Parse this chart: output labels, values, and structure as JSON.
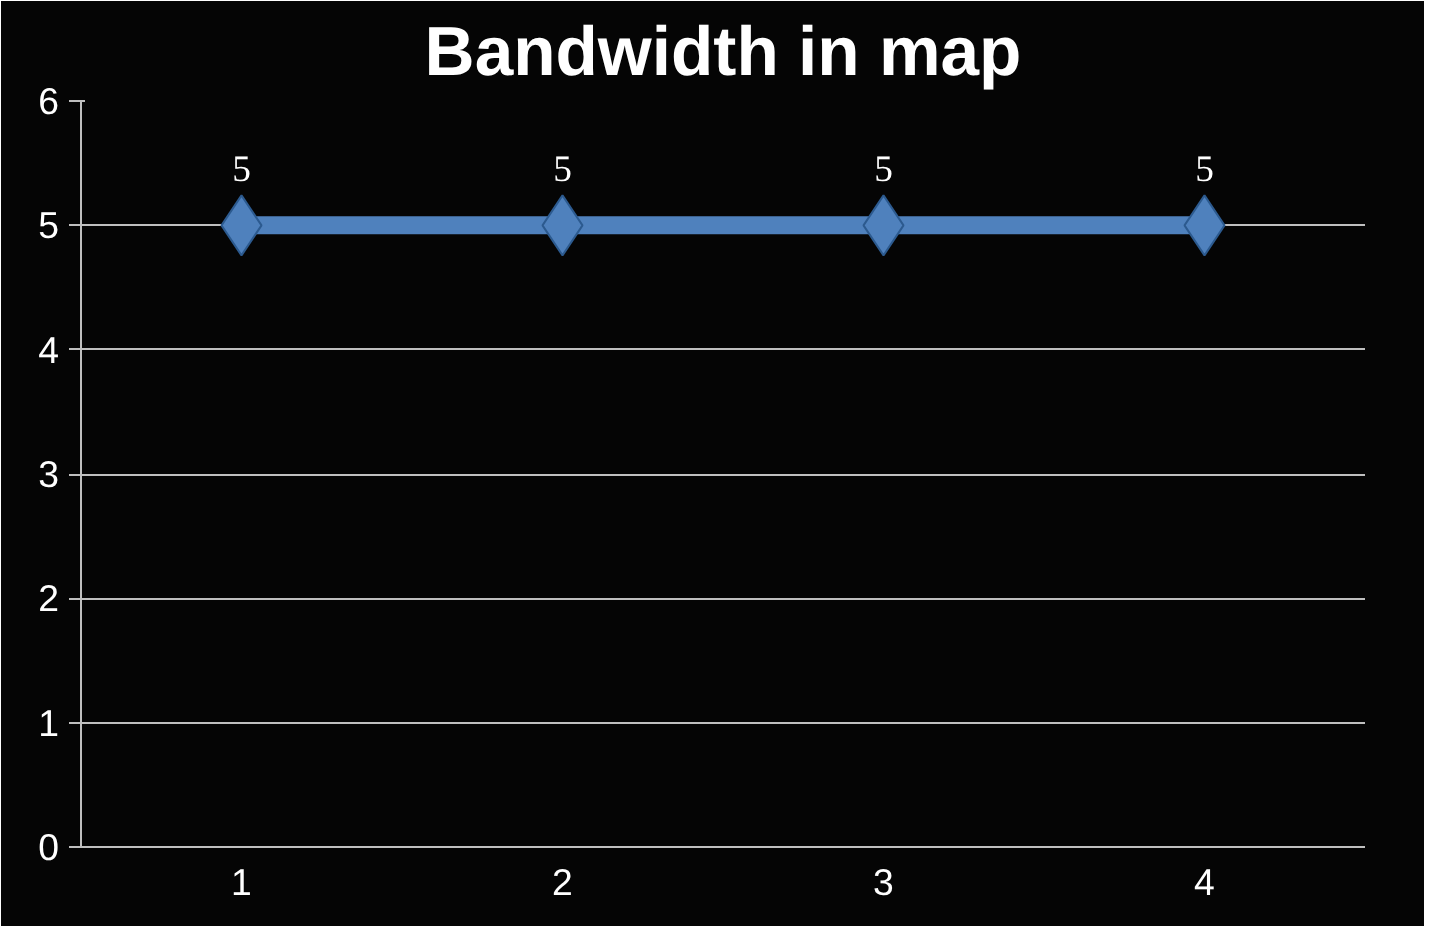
{
  "chart_data": {
    "type": "line",
    "title": "Bandwidth in map",
    "categories": [
      "1",
      "2",
      "3",
      "4"
    ],
    "series": [
      {
        "color": "#4f81bd",
        "values": [
          5,
          5,
          5,
          5
        ]
      }
    ],
    "ylim": [
      0,
      6
    ],
    "yticks": [
      0,
      1,
      2,
      3,
      4,
      5,
      6
    ],
    "grid": "y",
    "marker": "diamond",
    "line_style": "solid",
    "data_labels": true
  }
}
